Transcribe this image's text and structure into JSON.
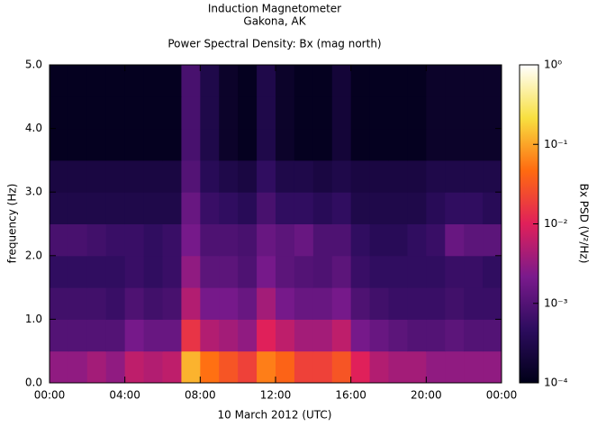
{
  "chart_data": {
    "type": "spectrogram",
    "title": "Induction Magnetometer",
    "subtitle": "Gakona, AK",
    "plot_title": "Power Spectral Density: Bx (mag north)",
    "x_label": "10 March 2012 (UTC)",
    "y_label": "frequency (Hz)",
    "colorbar_label": "Bx PSD (V²/Hz)",
    "time_bins": [
      0,
      1,
      2,
      3,
      4,
      5,
      6,
      7,
      8,
      9,
      10,
      11,
      12,
      13,
      14,
      15,
      16,
      17,
      18,
      19,
      20,
      21,
      22,
      23,
      24
    ],
    "freq_bins": [
      0,
      0.5,
      1,
      1.5,
      2,
      2.5,
      3,
      3.5,
      4,
      4.5,
      5
    ],
    "values": [
      [
        0.003,
        0.003,
        0.004,
        0.003,
        0.006,
        0.005,
        0.006,
        0.12,
        0.05,
        0.03,
        0.02,
        0.06,
        0.04,
        0.02,
        0.02,
        0.03,
        0.01,
        0.005,
        0.004,
        0.004,
        0.003,
        0.003,
        0.003,
        0.003
      ],
      [
        0.001,
        0.001,
        0.001,
        0.001,
        0.002,
        0.0015,
        0.0015,
        0.015,
        0.005,
        0.004,
        0.003,
        0.01,
        0.006,
        0.004,
        0.004,
        0.006,
        0.002,
        0.0015,
        0.0012,
        0.001,
        0.001,
        0.0012,
        0.001,
        0.001
      ],
      [
        0.0007,
        0.0007,
        0.0007,
        0.0006,
        0.0009,
        0.0007,
        0.0008,
        0.005,
        0.002,
        0.002,
        0.0015,
        0.004,
        0.002,
        0.0015,
        0.0015,
        0.002,
        0.0009,
        0.0007,
        0.0006,
        0.0006,
        0.0006,
        0.0007,
        0.0006,
        0.0006
      ],
      [
        0.0005,
        0.0005,
        0.0005,
        0.0005,
        0.0006,
        0.0005,
        0.0006,
        0.003,
        0.0012,
        0.0012,
        0.0009,
        0.002,
        0.0012,
        0.001,
        0.0009,
        0.0012,
        0.0006,
        0.0005,
        0.0005,
        0.0005,
        0.0005,
        0.0006,
        0.0006,
        0.0005
      ],
      [
        0.0008,
        0.0008,
        0.0007,
        0.0006,
        0.0006,
        0.0005,
        0.0006,
        0.002,
        0.0009,
        0.0009,
        0.0008,
        0.0015,
        0.0012,
        0.0015,
        0.0009,
        0.0009,
        0.0005,
        0.0004,
        0.0004,
        0.0005,
        0.0006,
        0.0015,
        0.0012,
        0.0012
      ],
      [
        0.0003,
        0.0003,
        0.0003,
        0.0003,
        0.0003,
        0.0003,
        0.0003,
        0.0015,
        0.0006,
        0.0005,
        0.0004,
        0.0008,
        0.0005,
        0.0005,
        0.0004,
        0.0005,
        0.0003,
        0.0003,
        0.0003,
        0.0003,
        0.0004,
        0.0005,
        0.0005,
        0.0004
      ],
      [
        0.00025,
        0.00025,
        0.00025,
        0.00025,
        0.00025,
        0.00025,
        0.00025,
        0.001,
        0.0004,
        0.0003,
        0.00025,
        0.0005,
        0.0003,
        0.0003,
        0.00025,
        0.0003,
        0.00025,
        0.00025,
        0.00025,
        0.00025,
        0.0003,
        0.0003,
        0.0003,
        0.0003
      ],
      [
        0.00012,
        0.00012,
        0.00012,
        0.00012,
        0.00012,
        0.00012,
        0.00012,
        0.0008,
        0.0003,
        0.00015,
        0.00012,
        0.0003,
        0.00015,
        0.00012,
        0.00012,
        0.0002,
        0.00012,
        0.00012,
        0.00012,
        0.00012,
        0.00015,
        0.00015,
        0.00015,
        0.00015
      ],
      [
        0.00012,
        0.00012,
        0.00012,
        0.00012,
        0.00012,
        0.00012,
        0.00012,
        0.0008,
        0.0003,
        0.00015,
        0.00012,
        0.0003,
        0.00015,
        0.00012,
        0.00012,
        0.0002,
        0.00012,
        0.00012,
        0.00012,
        0.00012,
        0.00015,
        0.00015,
        0.00015,
        0.00015
      ],
      [
        0.00012,
        0.00012,
        0.00012,
        0.00012,
        0.00012,
        0.00012,
        0.00012,
        0.0008,
        0.0003,
        0.00015,
        0.00012,
        0.0003,
        0.00015,
        0.00012,
        0.00012,
        0.0002,
        0.00012,
        0.00012,
        0.00012,
        0.00012,
        0.00015,
        0.00015,
        0.00015,
        0.00015
      ]
    ],
    "xlim": [
      0,
      24
    ],
    "xticks": [
      {
        "value": 0,
        "label": "00:00"
      },
      {
        "value": 4,
        "label": "04:00"
      },
      {
        "value": 8,
        "label": "08:00"
      },
      {
        "value": 12,
        "label": "12:00"
      },
      {
        "value": 16,
        "label": "16:00"
      },
      {
        "value": 20,
        "label": "20:00"
      },
      {
        "value": 24,
        "label": "00:00"
      }
    ],
    "ylim": [
      0,
      5
    ],
    "yticks": [
      {
        "value": 0,
        "label": "0.0"
      },
      {
        "value": 1,
        "label": "1.0"
      },
      {
        "value": 2,
        "label": "2.0"
      },
      {
        "value": 3,
        "label": "3.0"
      },
      {
        "value": 4,
        "label": "4.0"
      },
      {
        "value": 5,
        "label": "5.0"
      }
    ],
    "clim": [
      0.0001,
      1
    ],
    "color_scale": "log",
    "cticks": [
      {
        "value": 0.0001,
        "label": "10⁻⁴"
      },
      {
        "value": 0.001,
        "label": "10⁻³"
      },
      {
        "value": 0.01,
        "label": "10⁻²"
      },
      {
        "value": 0.1,
        "label": "10⁻¹"
      },
      {
        "value": 1,
        "label": "10⁰"
      }
    ],
    "colormap": [
      "#000018",
      "#2c0c5e",
      "#7a1a8c",
      "#e0205a",
      "#ff6a10",
      "#f8e040",
      "#ffffff"
    ]
  }
}
